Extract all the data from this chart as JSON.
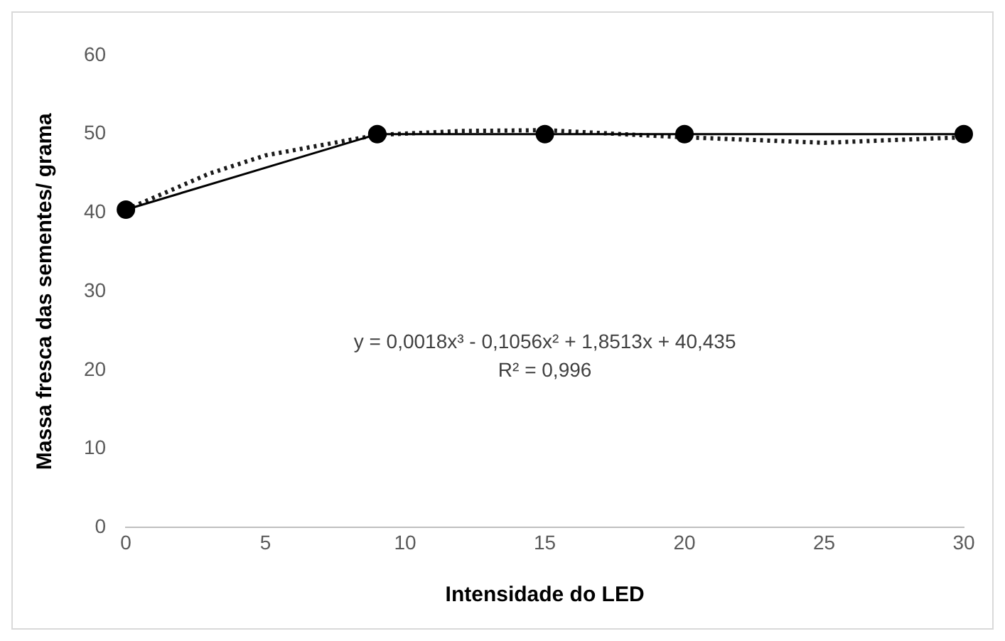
{
  "chart_data": {
    "type": "line",
    "xlabel": "Intensidade do LED",
    "ylabel": "Massa fresca das sementes/ grama",
    "xlim": [
      0,
      30
    ],
    "xticks": [
      0,
      5,
      10,
      15,
      20,
      25,
      30
    ],
    "ylim": [
      0,
      60
    ],
    "yticks": [
      0,
      10,
      20,
      30,
      40,
      50,
      60
    ],
    "grid": false,
    "legend": false,
    "series": [
      {
        "color": "#000000",
        "marker": "circle",
        "line_style": "solid",
        "x": [
          0,
          9,
          15,
          20,
          30
        ],
        "values": [
          40.4,
          50,
          50,
          50,
          50
        ]
      },
      {
        "color": "#1a1a1a",
        "marker": "none",
        "line_style": "dotted",
        "x": [
          0,
          3,
          5,
          9,
          12,
          15,
          20,
          25,
          30
        ],
        "values": [
          40.4,
          45,
          47.3,
          49.9,
          50.4,
          50.5,
          49.6,
          48.9,
          49.6
        ]
      }
    ],
    "annotations": [
      "y = 0,0018x³ - 0,1056x² + 1,8513x + 40,435",
      "R² = 0,996"
    ]
  }
}
